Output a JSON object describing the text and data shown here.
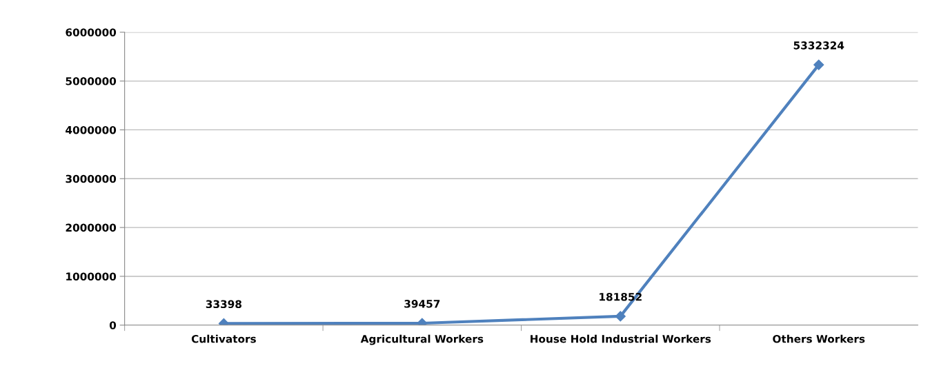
{
  "chart_data": {
    "type": "line",
    "categories": [
      "Cultivators",
      "Agricultural Workers",
      "House Hold Industrial Workers",
      "Others Workers"
    ],
    "series": [
      {
        "color": "#4f81bd",
        "values": [
          33398,
          39457,
          181852,
          5332324
        ]
      }
    ],
    "ylim": [
      0,
      6000000
    ],
    "yticks": [
      0,
      1000000,
      2000000,
      3000000,
      4000000,
      5000000,
      6000000
    ],
    "grid": "y",
    "marker": "diamond",
    "line_style": "solid",
    "data_labels": true,
    "legend": false
  }
}
